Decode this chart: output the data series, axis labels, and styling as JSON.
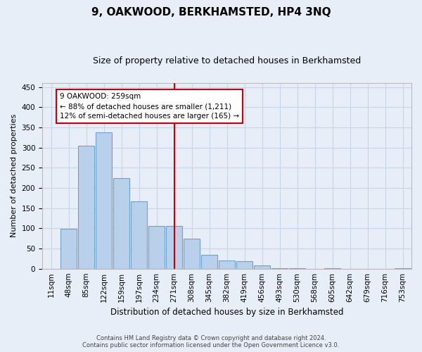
{
  "title": "9, OAKWOOD, BERKHAMSTED, HP4 3NQ",
  "subtitle": "Size of property relative to detached houses in Berkhamsted",
  "xlabel": "Distribution of detached houses by size in Berkhamsted",
  "ylabel": "Number of detached properties",
  "footer_line1": "Contains HM Land Registry data © Crown copyright and database right 2024.",
  "footer_line2": "Contains public sector information licensed under the Open Government Licence v3.0.",
  "annotation_title": "9 OAKWOOD: 259sqm",
  "annotation_line1": "← 88% of detached houses are smaller (1,211)",
  "annotation_line2": "12% of semi-detached houses are larger (165) →",
  "bar_labels": [
    "11sqm",
    "48sqm",
    "85sqm",
    "122sqm",
    "159sqm",
    "197sqm",
    "234sqm",
    "271sqm",
    "308sqm",
    "345sqm",
    "382sqm",
    "419sqm",
    "456sqm",
    "493sqm",
    "530sqm",
    "568sqm",
    "605sqm",
    "642sqm",
    "679sqm",
    "716sqm",
    "753sqm"
  ],
  "bar_centers": [
    0,
    1,
    2,
    3,
    4,
    5,
    6,
    7,
    8,
    9,
    10,
    11,
    12,
    13,
    14,
    15,
    16,
    17,
    18,
    19,
    20
  ],
  "bar_values": [
    0,
    99,
    304,
    337,
    225,
    166,
    106,
    106,
    75,
    35,
    20,
    18,
    8,
    2,
    1,
    0,
    1,
    0,
    0,
    0,
    1
  ],
  "bar_color": "#B8D0EA",
  "bar_edge_color": "#6BA3CC",
  "grid_color": "#C8D4E8",
  "background_color": "#E8EEF8",
  "vline_color": "#CC0000",
  "vline_x": 7,
  "ylim": [
    0,
    460
  ],
  "yticks": [
    0,
    50,
    100,
    150,
    200,
    250,
    300,
    350,
    400,
    450
  ],
  "annotation_box_edge_color": "#CC0000",
  "annotation_bg_color": "#FFFFFF",
  "title_fontsize": 11,
  "subtitle_fontsize": 9,
  "ylabel_fontsize": 8,
  "xlabel_fontsize": 8.5,
  "tick_fontsize": 7.5,
  "annotation_fontsize": 7.5,
  "footer_fontsize": 6
}
